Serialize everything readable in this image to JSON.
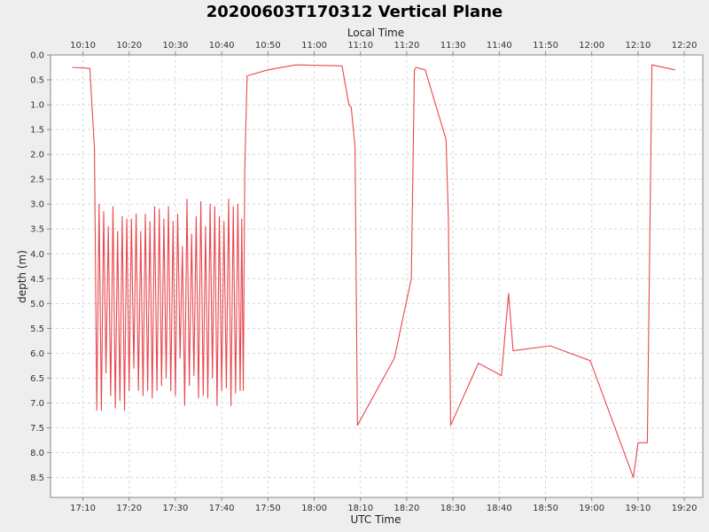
{
  "chart_data": {
    "type": "line",
    "title": "20200603T170312 Vertical Plane",
    "xlabel": "UTC Time",
    "x2label": "Local Time",
    "ylabel": "depth (m)",
    "y_inverted": true,
    "ylim": [
      0.0,
      8.9
    ],
    "xlim": [
      "17:03:00",
      "19:24:00"
    ],
    "grid": true,
    "colors": {
      "background": "#ffffff",
      "page": "#eeeeee",
      "line": "#e8474e",
      "grid": "#d8d8d8",
      "axis": "#888888"
    },
    "x_ticks": [
      "17:10",
      "17:20",
      "17:30",
      "17:40",
      "17:50",
      "18:00",
      "18:10",
      "18:20",
      "18:30",
      "18:40",
      "18:50",
      "19:00",
      "19:10",
      "19:20"
    ],
    "x2_ticks": [
      "10:10",
      "10:20",
      "10:30",
      "10:40",
      "10:50",
      "11:00",
      "11:10",
      "11:20",
      "11:30",
      "11:40",
      "11:50",
      "12:00",
      "12:10",
      "12:20"
    ],
    "y_ticks": [
      "0.0",
      "0.5",
      "1.0",
      "1.5",
      "2.0",
      "2.5",
      "3.0",
      "3.5",
      "4.0",
      "4.5",
      "5.0",
      "5.5",
      "6.0",
      "6.5",
      "7.0",
      "7.5",
      "8.0",
      "8.5"
    ],
    "series": [
      {
        "points": [
          [
            "17:07:40",
            0.25
          ],
          [
            "17:11:30",
            0.27
          ],
          [
            "17:12:30",
            1.9
          ],
          [
            "17:13:00",
            7.15
          ],
          [
            "17:13:30",
            3.0
          ],
          [
            "17:14:00",
            7.15
          ],
          [
            "17:14:30",
            3.15
          ],
          [
            "17:15:00",
            6.4
          ],
          [
            "17:15:30",
            3.45
          ],
          [
            "17:16:00",
            6.85
          ],
          [
            "17:16:30",
            3.05
          ],
          [
            "17:17:00",
            7.1
          ],
          [
            "17:17:30",
            3.55
          ],
          [
            "17:18:00",
            6.95
          ],
          [
            "17:18:30",
            3.25
          ],
          [
            "17:19:00",
            7.15
          ],
          [
            "17:19:30",
            3.3
          ],
          [
            "17:20:00",
            6.75
          ],
          [
            "17:20:30",
            3.3
          ],
          [
            "17:21:00",
            6.3
          ],
          [
            "17:21:30",
            3.2
          ],
          [
            "17:22:00",
            6.75
          ],
          [
            "17:22:30",
            3.55
          ],
          [
            "17:23:00",
            6.85
          ],
          [
            "17:23:30",
            3.2
          ],
          [
            "17:24:00",
            6.75
          ],
          [
            "17:24:30",
            3.35
          ],
          [
            "17:25:00",
            6.9
          ],
          [
            "17:25:30",
            3.05
          ],
          [
            "17:26:00",
            6.75
          ],
          [
            "17:26:30",
            3.1
          ],
          [
            "17:27:00",
            6.65
          ],
          [
            "17:27:30",
            3.3
          ],
          [
            "17:28:00",
            6.5
          ],
          [
            "17:28:30",
            3.05
          ],
          [
            "17:29:00",
            6.75
          ],
          [
            "17:29:30",
            3.35
          ],
          [
            "17:30:00",
            6.85
          ],
          [
            "17:30:30",
            3.2
          ],
          [
            "17:31:00",
            6.1
          ],
          [
            "17:31:30",
            3.85
          ],
          [
            "17:32:00",
            7.05
          ],
          [
            "17:32:30",
            2.9
          ],
          [
            "17:33:00",
            6.65
          ],
          [
            "17:33:30",
            3.6
          ],
          [
            "17:34:00",
            6.45
          ],
          [
            "17:34:30",
            3.25
          ],
          [
            "17:35:00",
            6.9
          ],
          [
            "17:35:30",
            2.95
          ],
          [
            "17:36:00",
            6.85
          ],
          [
            "17:36:30",
            3.45
          ],
          [
            "17:37:00",
            6.9
          ],
          [
            "17:37:30",
            3.0
          ],
          [
            "17:38:00",
            6.5
          ],
          [
            "17:38:30",
            3.05
          ],
          [
            "17:39:00",
            7.05
          ],
          [
            "17:39:30",
            3.25
          ],
          [
            "17:40:00",
            6.75
          ],
          [
            "17:40:30",
            3.35
          ],
          [
            "17:41:00",
            6.7
          ],
          [
            "17:41:30",
            2.9
          ],
          [
            "17:42:00",
            7.05
          ],
          [
            "17:42:30",
            3.05
          ],
          [
            "17:43:00",
            6.8
          ],
          [
            "17:43:30",
            3.0
          ],
          [
            "17:44:00",
            6.75
          ],
          [
            "17:44:20",
            3.3
          ],
          [
            "17:44:40",
            6.75
          ],
          [
            "17:45:00",
            2.3
          ],
          [
            "17:45:30",
            0.42
          ],
          [
            "17:50:00",
            0.3
          ],
          [
            "17:56:00",
            0.2
          ],
          [
            "18:06:00",
            0.22
          ],
          [
            "18:07:30",
            1.0
          ],
          [
            "18:08:00",
            1.05
          ],
          [
            "18:08:50",
            1.85
          ],
          [
            "18:09:20",
            7.45
          ],
          [
            "18:17:20",
            6.1
          ],
          [
            "18:21:00",
            4.5
          ],
          [
            "18:21:40",
            0.3
          ],
          [
            "18:22:00",
            0.25
          ],
          [
            "18:24:00",
            0.3
          ],
          [
            "18:28:30",
            1.7
          ],
          [
            "18:29:00",
            3.25
          ],
          [
            "18:29:30",
            7.45
          ],
          [
            "18:35:30",
            6.2
          ],
          [
            "18:40:30",
            6.45
          ],
          [
            "18:42:00",
            4.8
          ],
          [
            "18:43:00",
            5.95
          ],
          [
            "18:51:00",
            5.85
          ],
          [
            "18:59:40",
            6.15
          ],
          [
            "19:09:00",
            8.5
          ],
          [
            "19:10:00",
            7.8
          ],
          [
            "19:12:00",
            7.8
          ],
          [
            "19:13:00",
            0.2
          ],
          [
            "19:18:00",
            0.3
          ]
        ]
      }
    ]
  }
}
